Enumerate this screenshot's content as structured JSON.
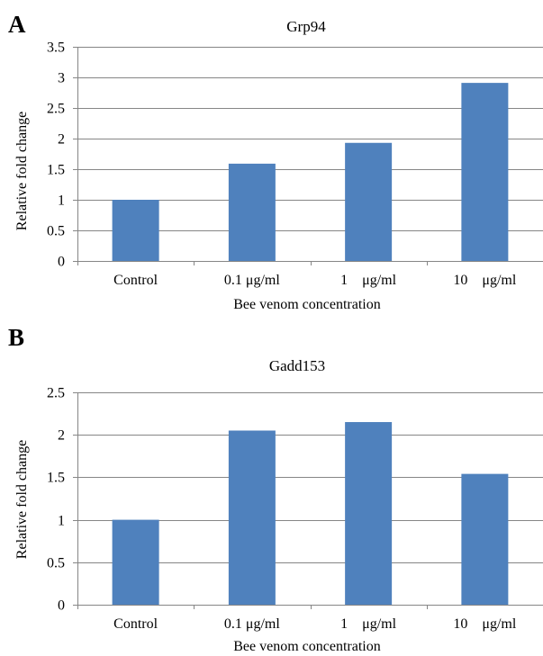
{
  "figure": {
    "panel_a_letter": "A",
    "panel_b_letter": "B"
  },
  "chart_data": [
    {
      "type": "bar",
      "title": "Grp94",
      "xlabel": "Bee venom concentration",
      "ylabel": "Relative fold change",
      "categories": [
        "Control",
        "0.1 μg/ml",
        "1    μg/ml",
        "10    μg/ml"
      ],
      "values": [
        1.0,
        1.59,
        1.93,
        2.91
      ],
      "ylim": [
        0,
        3.5
      ],
      "yticks": [
        "0",
        "0.5",
        "1",
        "1.5",
        "2",
        "2.5",
        "3",
        "3.5"
      ],
      "grid": true,
      "legend": "none",
      "bar_color": "#4f81bd"
    },
    {
      "type": "bar",
      "title": "Gadd153",
      "xlabel": "Bee venom concentration",
      "ylabel": "Relative fold change",
      "categories": [
        "Control",
        "0.1 μg/ml",
        "1    μg/ml",
        "10    μg/ml"
      ],
      "values": [
        1.0,
        2.05,
        2.15,
        1.54
      ],
      "ylim": [
        0,
        2.5
      ],
      "yticks": [
        "0",
        "0.5",
        "1",
        "1.5",
        "2",
        "2.5"
      ],
      "grid": true,
      "legend": "none",
      "bar_color": "#4f81bd"
    }
  ]
}
